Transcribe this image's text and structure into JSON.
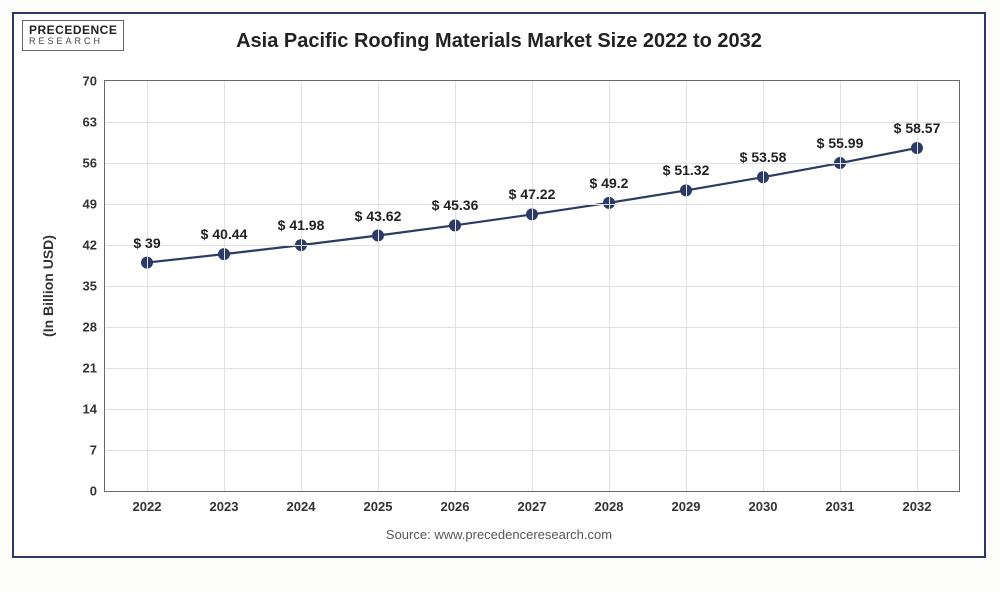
{
  "logo": {
    "line1": "PRECEDENCE",
    "line2": "RESEARCH"
  },
  "title": "Asia Pacific Roofing Materials Market Size 2022 to 2032",
  "ylabel": "(In Billion USD)",
  "source": "Source: www.precedenceresearch.com",
  "chart": {
    "type": "line",
    "categories": [
      "2022",
      "2023",
      "2024",
      "2025",
      "2026",
      "2027",
      "2028",
      "2029",
      "2030",
      "2031",
      "2032"
    ],
    "values": [
      39,
      40.44,
      41.98,
      43.62,
      45.36,
      47.22,
      49.2,
      51.32,
      53.58,
      55.99,
      58.57
    ],
    "value_labels": [
      "$ 39",
      "$ 40.44",
      "$ 41.98",
      "$ 43.62",
      "$ 45.36",
      "$ 47.22",
      "$ 49.2",
      "$ 51.32",
      "$ 53.58",
      "$ 55.99",
      "$ 58.57"
    ],
    "ylim": [
      0,
      70
    ],
    "ytick_step": 7,
    "yticks": [
      0,
      7,
      14,
      21,
      28,
      35,
      42,
      49,
      56,
      63,
      70
    ],
    "line_color": "#2b3b66",
    "marker_color": "#2b3b66",
    "marker_radius": 6,
    "line_width": 2.2,
    "grid_color": "#e2e2e2",
    "background_color": "#ffffff",
    "frame_border_color": "#2a3a63",
    "tick_fontsize": 13,
    "title_fontsize": 20,
    "datalabel_fontsize": 14,
    "ylabel_fontsize": 14
  }
}
